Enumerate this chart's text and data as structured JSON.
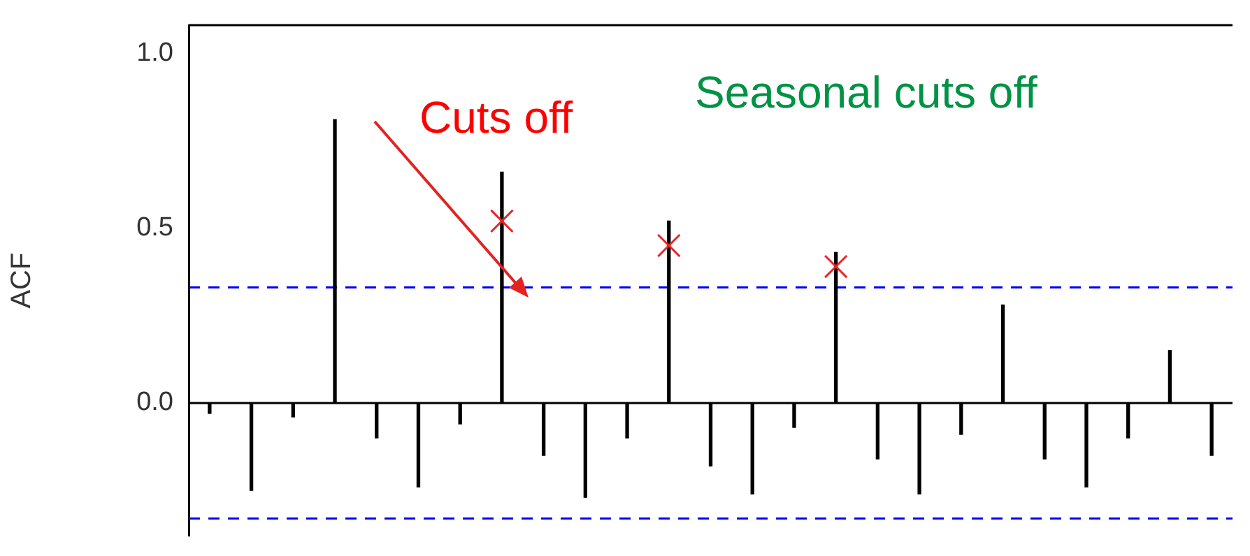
{
  "chart_data": {
    "type": "bar",
    "ylabel": "ACF",
    "categories": [
      null,
      null,
      null,
      null,
      null,
      null,
      null,
      null,
      null,
      null,
      null,
      null,
      null,
      null,
      null,
      null,
      null,
      null,
      null,
      null,
      null,
      null,
      null,
      null,
      null
    ],
    "series": [
      {
        "color": "#000000",
        "values": [
          -0.03,
          -0.25,
          -0.04,
          0.81,
          -0.1,
          -0.24,
          -0.06,
          0.66,
          -0.15,
          -0.27,
          -0.1,
          0.52,
          -0.18,
          -0.26,
          -0.07,
          0.43,
          -0.16,
          -0.26,
          -0.09,
          0.28,
          -0.16,
          -0.24,
          -0.1,
          0.15,
          -0.15
        ]
      },
      {
        "type": "scatter",
        "color": "#e8262a",
        "marker": "cross",
        "values": [
          null,
          null,
          null,
          null,
          null,
          null,
          null,
          0.52,
          null,
          null,
          null,
          0.45,
          null,
          null,
          null,
          0.39,
          null,
          null,
          null,
          null,
          null,
          null,
          null,
          null,
          null
        ]
      }
    ],
    "ylim": [
      -0.38,
      1.08
    ],
    "yticks": [
      {
        "value": 0,
        "label": "0.0"
      },
      {
        "value": 0.5,
        "label": "0.5"
      },
      {
        "value": 1,
        "label": "1.0"
      }
    ],
    "ref_lines": [
      {
        "axis": "y",
        "value": 0.33,
        "color": "#0000ff",
        "line_style": "dashed"
      },
      {
        "axis": "y",
        "value": -0.33,
        "color": "#0000ff",
        "line_style": "dashed"
      },
      {
        "axis": "y",
        "value": 0,
        "color": "#000000",
        "line_style": "solid"
      }
    ],
    "annotations": [
      "Cuts off",
      "Seasonal cuts off"
    ],
    "grid": false,
    "legend": false,
    "tick_labels": "y"
  }
}
